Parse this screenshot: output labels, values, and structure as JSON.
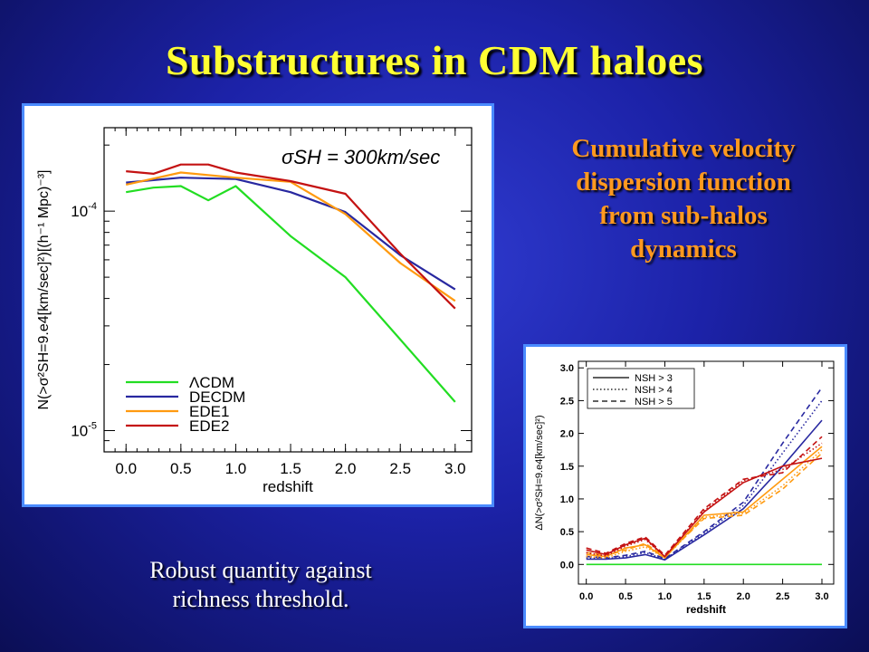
{
  "slide": {
    "title": "Substructures in CDM haloes",
    "description_lines": [
      "Cumulative velocity",
      "dispersion  function",
      "from sub-halos",
      "dynamics"
    ],
    "note_lines": [
      "Robust quantity against",
      "richness threshold."
    ]
  },
  "chart_data": [
    {
      "type": "line",
      "annotation": "σSH = 300km/sec",
      "xlabel": "redshift",
      "ylabel": "N(>σ²SH=9.e4[km/sec]²)[(h⁻¹ Mpc)⁻³]",
      "x_ticks": [
        "0.0",
        "0.5",
        "1.0",
        "1.5",
        "2.0",
        "2.5",
        "3.0"
      ],
      "y_ticks": [
        "10⁻⁴",
        "10⁻⁵"
      ],
      "xlim": [
        -0.2,
        3.15
      ],
      "ylim": [
        8e-06,
        0.00024
      ],
      "yscale": "log",
      "legend_position": "bottom-left",
      "series": [
        {
          "name": "ΛCDM",
          "color": "#22dd22",
          "x": [
            0.0,
            0.25,
            0.5,
            0.75,
            1.0,
            1.5,
            2.0,
            2.5,
            3.0
          ],
          "values": [
            0.000122,
            0.000128,
            0.00013,
            0.000112,
            0.00013,
            7.7e-05,
            5e-05,
            2.6e-05,
            1.35e-05
          ]
        },
        {
          "name": "DECDM",
          "color": "#2828a0",
          "x": [
            0.0,
            0.5,
            1.0,
            1.5,
            2.0,
            2.5,
            3.0
          ],
          "values": [
            0.000135,
            0.000142,
            0.00014,
            0.000122,
            9.9e-05,
            6.3e-05,
            4.4e-05
          ]
        },
        {
          "name": "EDE1",
          "color": "#ff9a10",
          "x": [
            0.0,
            0.5,
            1.0,
            1.5,
            2.0,
            2.5,
            3.0
          ],
          "values": [
            0.000132,
            0.00015,
            0.000142,
            0.000136,
            9.7e-05,
            5.8e-05,
            3.9e-05
          ]
        },
        {
          "name": "EDE2",
          "color": "#c41212",
          "x": [
            0.0,
            0.25,
            0.5,
            0.75,
            1.0,
            1.5,
            2.0,
            2.5,
            3.0
          ],
          "values": [
            0.000152,
            0.000148,
            0.000163,
            0.000163,
            0.00015,
            0.000137,
            0.00012,
            6.4e-05,
            3.6e-05
          ]
        }
      ]
    },
    {
      "type": "line",
      "xlabel": "redshift",
      "ylabel": "ΔN(>σ²SH=9.e4[km/sec]²)",
      "x_ticks": [
        "0.0",
        "0.5",
        "1.0",
        "1.5",
        "2.0",
        "2.5",
        "3.0"
      ],
      "y_ticks": [
        "0.0",
        "0.5",
        "1.0",
        "1.5",
        "2.0",
        "2.5",
        "3.0"
      ],
      "xlim": [
        -0.1,
        3.15
      ],
      "ylim": [
        -0.3,
        3.1
      ],
      "legend_position": "top-left",
      "legend": [
        {
          "label": "NSH > 3",
          "dash": "solid"
        },
        {
          "label": "NSH > 4",
          "dash": "dotted"
        },
        {
          "label": "NSH > 5",
          "dash": "dashed"
        }
      ],
      "series": [
        {
          "color": "#22dd22",
          "dash": "solid",
          "x": [
            0.0,
            3.0
          ],
          "values": [
            0.0,
            0.0
          ]
        },
        {
          "color": "#2828a0",
          "dash": "solid",
          "x": [
            0.0,
            0.25,
            0.5,
            0.75,
            1.0,
            1.5,
            2.0,
            2.5,
            3.0
          ],
          "values": [
            0.08,
            0.08,
            0.1,
            0.15,
            0.07,
            0.45,
            0.85,
            1.5,
            2.2
          ]
        },
        {
          "color": "#2828a0",
          "dash": "dotted",
          "x": [
            0.0,
            0.25,
            0.5,
            0.75,
            1.0,
            1.5,
            2.0,
            2.5,
            3.0
          ],
          "values": [
            0.1,
            0.09,
            0.12,
            0.18,
            0.08,
            0.48,
            0.9,
            1.7,
            2.5
          ]
        },
        {
          "color": "#2828a0",
          "dash": "dashed",
          "x": [
            0.0,
            0.25,
            0.5,
            0.75,
            1.0,
            1.5,
            2.0,
            2.5,
            3.0
          ],
          "values": [
            0.12,
            0.1,
            0.14,
            0.2,
            0.09,
            0.5,
            0.95,
            1.85,
            2.7
          ]
        },
        {
          "color": "#ff9a10",
          "dash": "solid",
          "x": [
            0.0,
            0.25,
            0.5,
            0.75,
            1.0,
            1.5,
            2.0,
            2.5,
            3.0
          ],
          "values": [
            0.15,
            0.12,
            0.25,
            0.3,
            0.1,
            0.75,
            0.8,
            1.3,
            1.8
          ]
        },
        {
          "color": "#ff9a10",
          "dash": "dotted",
          "x": [
            0.0,
            0.25,
            0.5,
            0.75,
            1.0,
            1.5,
            2.0,
            2.5,
            3.0
          ],
          "values": [
            0.12,
            0.1,
            0.2,
            0.27,
            0.1,
            0.72,
            0.78,
            1.2,
            1.75
          ]
        },
        {
          "color": "#ff9a10",
          "dash": "dashed",
          "x": [
            0.0,
            0.25,
            0.5,
            0.75,
            1.0,
            1.5,
            2.0,
            2.5,
            3.0
          ],
          "values": [
            0.18,
            0.14,
            0.22,
            0.32,
            0.12,
            0.7,
            0.75,
            1.15,
            1.7
          ]
        },
        {
          "color": "#c41212",
          "dash": "solid",
          "x": [
            0.0,
            0.25,
            0.5,
            0.75,
            1.0,
            1.5,
            2.0,
            2.5,
            3.0
          ],
          "values": [
            0.22,
            0.15,
            0.3,
            0.4,
            0.12,
            0.8,
            1.25,
            1.5,
            1.62
          ]
        },
        {
          "color": "#c41212",
          "dash": "dotted",
          "x": [
            0.0,
            0.25,
            0.5,
            0.75,
            1.0,
            1.5,
            2.0,
            2.5,
            3.0
          ],
          "values": [
            0.18,
            0.13,
            0.28,
            0.38,
            0.12,
            0.82,
            1.28,
            1.45,
            1.85
          ]
        },
        {
          "color": "#c41212",
          "dash": "dashed",
          "x": [
            0.0,
            0.25,
            0.5,
            0.75,
            1.0,
            1.5,
            2.0,
            2.5,
            3.0
          ],
          "values": [
            0.25,
            0.17,
            0.32,
            0.42,
            0.14,
            0.85,
            1.3,
            1.4,
            1.95
          ]
        }
      ]
    }
  ]
}
